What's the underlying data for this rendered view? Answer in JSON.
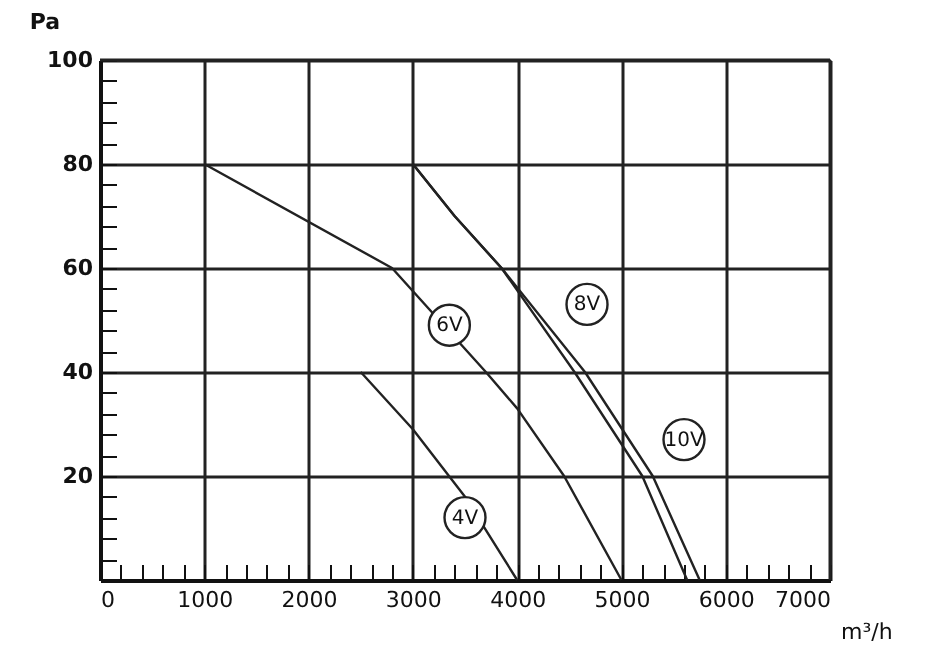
{
  "chart_data": {
    "type": "line",
    "xlabel": "m³/h",
    "ylabel": "Pa",
    "series": [
      {
        "color": "#222222",
        "x": [
          2500,
          3000,
          3500,
          4000
        ],
        "values": [
          40,
          29,
          16,
          0
        ]
      },
      {
        "color": "#222222",
        "x": [
          1000,
          2800,
          3700,
          4000,
          4450,
          5000
        ],
        "values": [
          80,
          60,
          40,
          33,
          20,
          0
        ]
      },
      {
        "color": "#222222",
        "x": [
          3000,
          3400,
          3850,
          4550,
          5200,
          5630
        ],
        "values": [
          80,
          70,
          60,
          40,
          20,
          0
        ]
      },
      {
        "color": "#222222",
        "x": [
          3000,
          3400,
          3850,
          4650,
          5300,
          5750
        ],
        "values": [
          80,
          70,
          60,
          40,
          20,
          0
        ]
      }
    ],
    "annotations": [
      {
        "text": "4V",
        "x": 3500,
        "y": 12
      },
      {
        "text": "6V",
        "x": 3350,
        "y": 49
      },
      {
        "text": "8V",
        "x": 4670,
        "y": 53
      },
      {
        "text": "10V",
        "x": 5600,
        "y": 27
      }
    ],
    "xlim": [
      0,
      7000
    ],
    "ylim": [
      0,
      100
    ],
    "xticks": [
      0,
      {
        "value": 200,
        "label": null
      },
      {
        "value": 400,
        "label": null
      },
      {
        "value": 600,
        "label": null
      },
      {
        "value": 800,
        "label": null
      },
      1000,
      {
        "value": 1200,
        "label": null
      },
      {
        "value": 1400,
        "label": null
      },
      {
        "value": 1600,
        "label": null
      },
      {
        "value": 1800,
        "label": null
      },
      2000,
      {
        "value": 2200,
        "label": null
      },
      {
        "value": 2400,
        "label": null
      },
      {
        "value": 2600,
        "label": null
      },
      {
        "value": 2800,
        "label": null
      },
      3000,
      {
        "value": 3200,
        "label": null
      },
      {
        "value": 3400,
        "label": null
      },
      {
        "value": 3600,
        "label": null
      },
      {
        "value": 3800,
        "label": null
      },
      4000,
      {
        "value": 4200,
        "label": null
      },
      {
        "value": 4400,
        "label": null
      },
      {
        "value": 4600,
        "label": null
      },
      {
        "value": 4800,
        "label": null
      },
      5000,
      {
        "value": 5200,
        "label": null
      },
      {
        "value": 5400,
        "label": null
      },
      {
        "value": 5600,
        "label": null
      },
      {
        "value": 5800,
        "label": null
      },
      6000,
      {
        "value": 6200,
        "label": null
      },
      {
        "value": 6400,
        "label": null
      },
      {
        "value": 6600,
        "label": null
      },
      {
        "value": 6800,
        "label": null
      },
      7000
    ],
    "yticks": [
      {
        "value": 4,
        "label": null
      },
      {
        "value": 8,
        "label": null
      },
      {
        "value": 12,
        "label": null
      },
      {
        "value": 16,
        "label": null
      },
      20,
      {
        "value": 24,
        "label": null
      },
      {
        "value": 28,
        "label": null
      },
      {
        "value": 32,
        "label": null
      },
      {
        "value": 36,
        "label": null
      },
      40,
      {
        "value": 44,
        "label": null
      },
      {
        "value": 48,
        "label": null
      },
      {
        "value": 52,
        "label": null
      },
      {
        "value": 56,
        "label": null
      },
      60,
      {
        "value": 64,
        "label": null
      },
      {
        "value": 68,
        "label": null
      },
      {
        "value": 72,
        "label": null
      },
      {
        "value": 76,
        "label": null
      },
      80,
      {
        "value": 84,
        "label": null
      },
      {
        "value": 88,
        "label": null
      },
      {
        "value": 92,
        "label": null
      },
      {
        "value": 96,
        "label": null
      },
      100
    ],
    "grid": true,
    "line_style": "solid"
  }
}
